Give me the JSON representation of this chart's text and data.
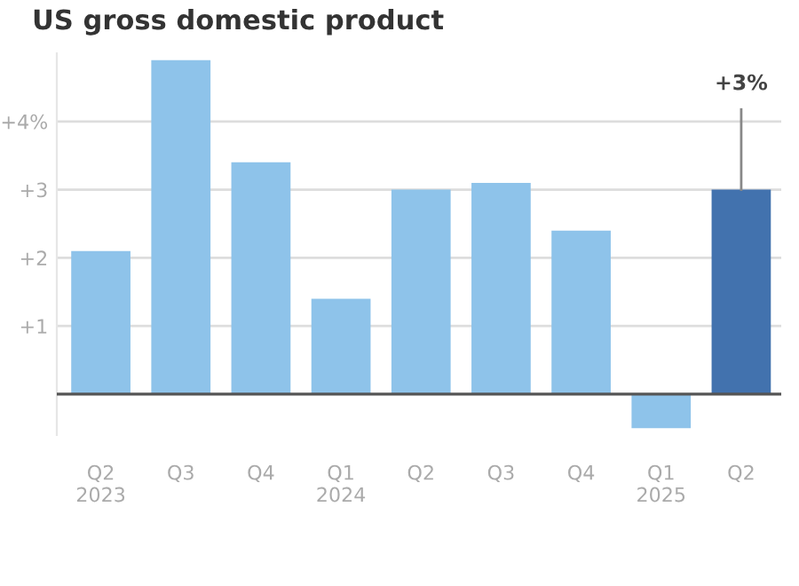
{
  "chart_data": {
    "type": "bar",
    "title": "US gross domestic product",
    "categories": [
      "Q2\n2023",
      "Q3",
      "Q4",
      "Q1\n2024",
      "Q2",
      "Q3",
      "Q4",
      "Q1\n2025",
      "Q2"
    ],
    "values": [
      2.1,
      4.9,
      3.4,
      1.4,
      3.0,
      3.1,
      2.4,
      -0.5,
      3.0
    ],
    "colors": [
      "#8ec3ea",
      "#8ec3ea",
      "#8ec3ea",
      "#8ec3ea",
      "#8ec3ea",
      "#8ec3ea",
      "#8ec3ea",
      "#8ec3ea",
      "#4272ae"
    ],
    "value_labels": [
      null,
      null,
      null,
      null,
      null,
      null,
      null,
      null,
      "+3%"
    ],
    "ylim": [
      -0.6,
      5.0
    ],
    "yticks": [
      {
        "value": 1,
        "label": "+1"
      },
      {
        "value": 2,
        "label": "+2"
      },
      {
        "value": 3,
        "label": "+3"
      },
      {
        "value": 4,
        "label": "+4%"
      }
    ],
    "grid": "y"
  }
}
